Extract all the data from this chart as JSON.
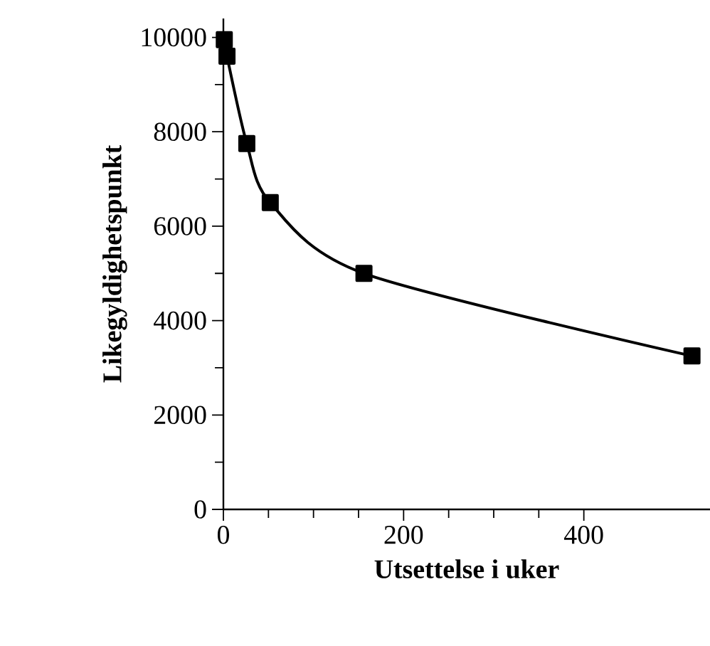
{
  "chart_data": {
    "type": "line",
    "xlabel": "Utsettelse i uker",
    "ylabel": "Likegyldighetspunkt",
    "x": [
      1,
      4,
      26,
      52,
      156,
      520
    ],
    "series": [
      {
        "color": "#000000",
        "values": [
          9950,
          9600,
          7750,
          6500,
          5000,
          3250
        ]
      }
    ],
    "xlim": [
      0,
      540
    ],
    "xticks": [
      0,
      200,
      400
    ],
    "ylim": [
      0,
      10400
    ],
    "yticks": [
      0,
      2000,
      4000,
      6000,
      8000,
      10000
    ],
    "marker": "square",
    "line_style": "solid",
    "grid": false
  }
}
